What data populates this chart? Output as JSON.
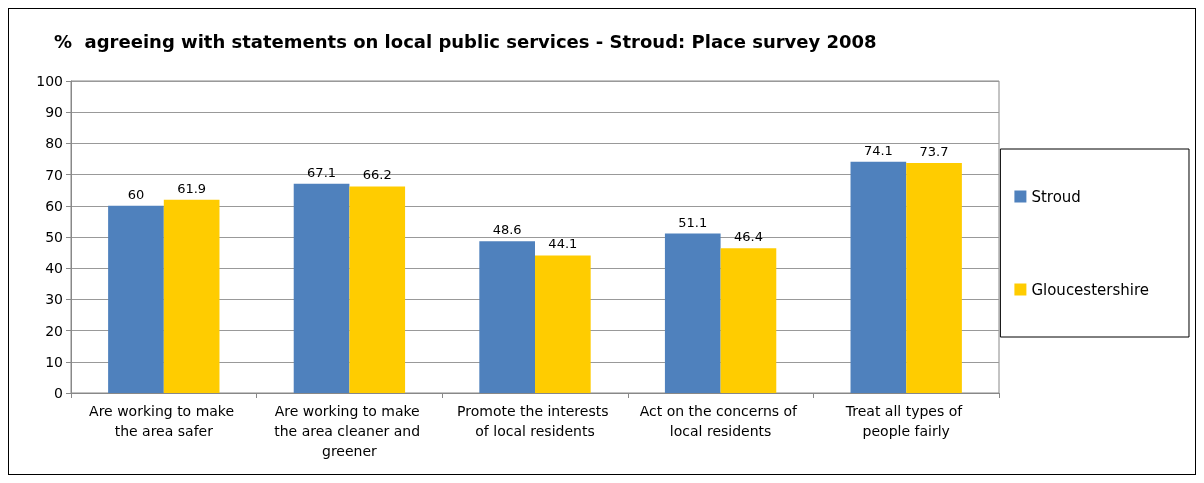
{
  "chart_data": {
    "type": "bar",
    "title": "%  agreeing with statements on local public services - Stroud: Place survey 2008",
    "categories": [
      "Are working to make the area safer",
      "Are working to make the area cleaner and greener",
      "Promote the interests of local residents",
      "Act on the concerns of local residents",
      "Treat all types of people fairly"
    ],
    "series": [
      {
        "name": "Stroud",
        "color": "#4f81bd",
        "values": [
          60,
          67.1,
          48.6,
          51.1,
          74.1
        ]
      },
      {
        "name": "Gloucestershire",
        "color": "#ffcc00",
        "values": [
          61.9,
          66.2,
          44.1,
          46.4,
          73.7
        ]
      }
    ],
    "ylim": [
      0,
      100
    ],
    "yticks": [
      0,
      10,
      20,
      30,
      40,
      50,
      60,
      70,
      80,
      90,
      100
    ],
    "grid": "y",
    "legend": "right",
    "data_labels": true
  }
}
